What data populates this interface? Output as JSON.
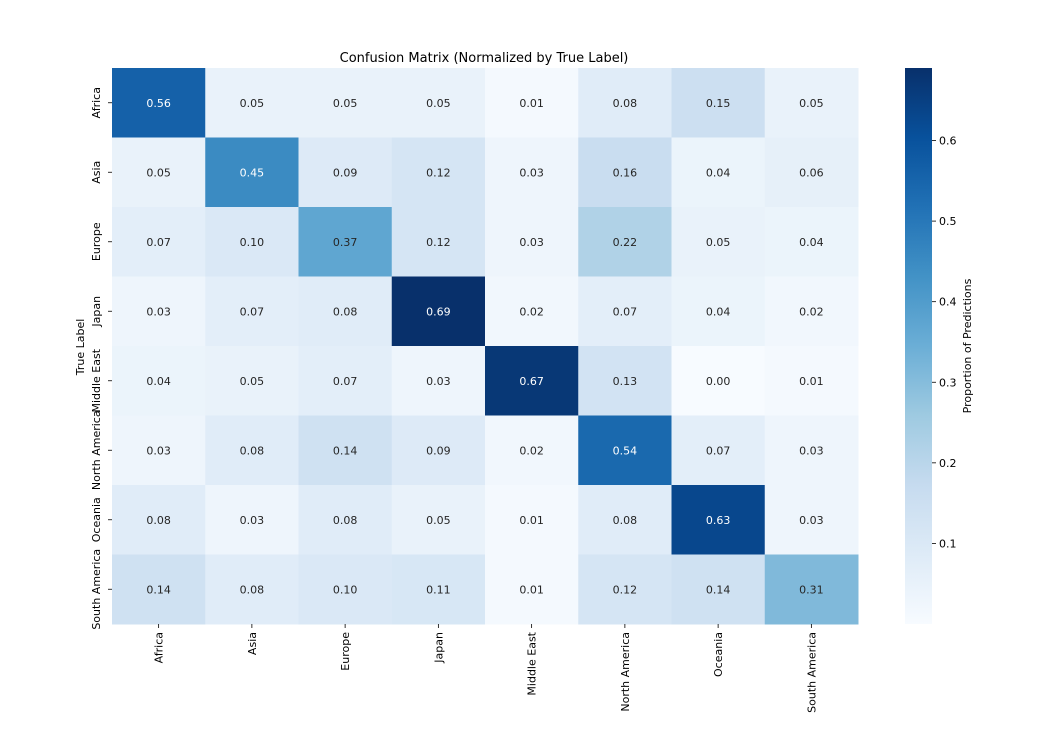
{
  "chart_data": {
    "type": "heatmap",
    "title": "Confusion Matrix (Normalized by True Label)",
    "xlabel": "",
    "ylabel": "True Label",
    "colorbar_label": "Proportion of Predictions",
    "rows": [
      "Africa",
      "Asia",
      "Europe",
      "Japan",
      "Middle East",
      "North America",
      "Oceania",
      "South America"
    ],
    "columns": [
      "Africa",
      "Asia",
      "Europe",
      "Japan",
      "Middle East",
      "North America",
      "Oceania",
      "South America"
    ],
    "values": [
      [
        0.56,
        0.05,
        0.05,
        0.05,
        0.01,
        0.08,
        0.15,
        0.05
      ],
      [
        0.05,
        0.45,
        0.09,
        0.12,
        0.03,
        0.16,
        0.04,
        0.06
      ],
      [
        0.07,
        0.1,
        0.37,
        0.12,
        0.03,
        0.22,
        0.05,
        0.04
      ],
      [
        0.03,
        0.07,
        0.08,
        0.69,
        0.02,
        0.07,
        0.04,
        0.02
      ],
      [
        0.04,
        0.05,
        0.07,
        0.03,
        0.67,
        0.13,
        0.0,
        0.01
      ],
      [
        0.03,
        0.08,
        0.14,
        0.09,
        0.02,
        0.54,
        0.07,
        0.03
      ],
      [
        0.08,
        0.03,
        0.08,
        0.05,
        0.01,
        0.08,
        0.63,
        0.03
      ],
      [
        0.14,
        0.08,
        0.1,
        0.11,
        0.01,
        0.12,
        0.14,
        0.31
      ]
    ],
    "color_range": [
      0.0,
      0.69
    ],
    "colorbar_ticks": [
      0.1,
      0.2,
      0.3,
      0.4,
      0.5,
      0.6
    ],
    "colormap": "Blues",
    "value_format": "2 decimals",
    "grid": false,
    "legend": "colorbar-right"
  }
}
